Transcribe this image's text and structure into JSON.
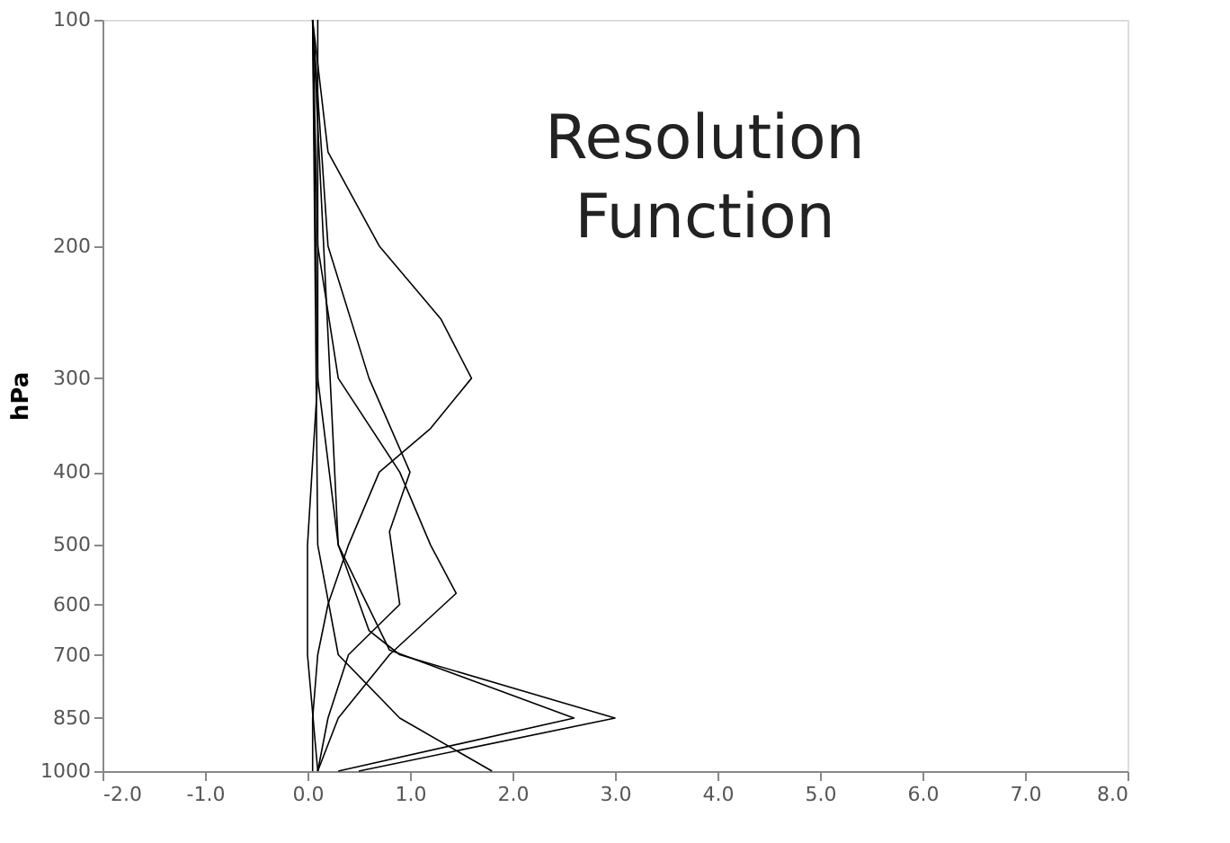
{
  "chart_data": {
    "type": "line",
    "ylabel": "hPa",
    "log": "y",
    "grid": false,
    "marker": "none",
    "line_style": "solid",
    "annotations": [
      "Resolution Function"
    ],
    "xlim": [
      -2.0,
      8.0
    ],
    "xticks": [
      {
        "value": -2,
        "label": "-2.0"
      },
      {
        "value": -1,
        "label": "-1.0"
      },
      {
        "value": 0,
        "label": "0.0"
      },
      {
        "value": 1,
        "label": "1.0"
      },
      {
        "value": 2,
        "label": "2.0"
      },
      {
        "value": 3,
        "label": "3.0"
      },
      {
        "value": 4,
        "label": "4.0"
      },
      {
        "value": 5,
        "label": "5.0"
      },
      {
        "value": 6,
        "label": "6.0"
      },
      {
        "value": 7,
        "label": "7.0"
      },
      {
        "value": 8,
        "label": "8.0"
      }
    ],
    "ylim": [
      1000,
      100
    ],
    "yticks": [
      100,
      200,
      300,
      400,
      500,
      600,
      700,
      850,
      1000
    ],
    "series": [
      {
        "color": "#000000",
        "x": [
          0.05,
          0.2,
          0.7,
          1.3,
          1.6,
          1.2,
          0.7,
          0.4,
          0.2,
          0.1,
          0.05,
          0.05
        ],
        "values": [
          100,
          150,
          200,
          250,
          300,
          350,
          400,
          500,
          600,
          700,
          850,
          1000
        ]
      },
      {
        "color": "#000000",
        "x": [
          0.05,
          0.1,
          0.3,
          0.9,
          1.2,
          1.45,
          0.8,
          0.3,
          0.1
        ],
        "values": [
          100,
          200,
          300,
          400,
          500,
          580,
          700,
          850,
          1000
        ]
      },
      {
        "color": "#000000",
        "x": [
          0.05,
          0.2,
          0.6,
          1.0,
          0.8,
          0.9,
          0.4,
          0.2,
          0.1
        ],
        "values": [
          100,
          200,
          300,
          400,
          480,
          600,
          700,
          850,
          1000
        ]
      },
      {
        "color": "#000000",
        "x": [
          0.05,
          0.1,
          0.3,
          0.6,
          0.9,
          3.0,
          0.5
        ],
        "values": [
          100,
          300,
          500,
          650,
          700,
          850,
          1000
        ]
      },
      {
        "color": "#000000",
        "x": [
          0.05,
          0.3,
          0.8,
          2.6,
          0.3
        ],
        "values": [
          100,
          500,
          690,
          850,
          1000
        ]
      },
      {
        "color": "#000000",
        "x": [
          0.05,
          0.1,
          0.3,
          0.9,
          1.8
        ],
        "values": [
          100,
          500,
          700,
          850,
          1000
        ]
      },
      {
        "color": "#000000",
        "x": [
          0.1,
          0.1,
          0.0,
          0.0,
          0.1
        ],
        "values": [
          100,
          300,
          500,
          700,
          1000
        ]
      }
    ]
  }
}
